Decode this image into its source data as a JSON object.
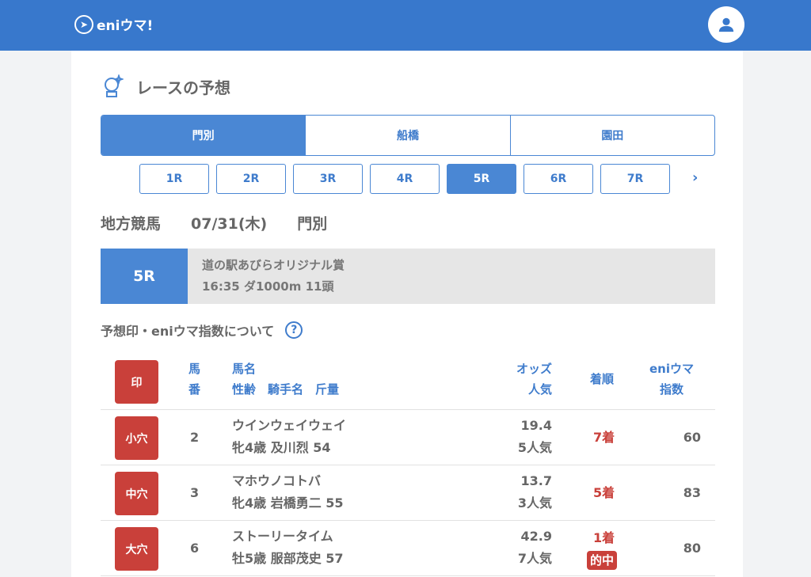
{
  "header": {
    "logo": "eniウマ!"
  },
  "page": {
    "title": "レースの予想"
  },
  "venues": [
    {
      "label": "門別",
      "active": true
    },
    {
      "label": "船橋",
      "active": false
    },
    {
      "label": "園田",
      "active": false
    }
  ],
  "races": [
    "1R",
    "2R",
    "3R",
    "4R",
    "5R",
    "6R",
    "7R"
  ],
  "active_race": "5R",
  "info": {
    "category": "地方競馬",
    "date": "07/31(木)",
    "venue": "門別"
  },
  "race": {
    "number": "5R",
    "name": "道の駅あびらオリジナル賞",
    "details": "16:35 ダ1000m 11頭"
  },
  "help": {
    "label": "予想印・eniウマ指数について"
  },
  "table": {
    "headers": {
      "mark": "印",
      "num1": "馬",
      "num2": "番",
      "name": "馬名",
      "sub": "性齢　騎手名　斤量",
      "odds": "オッズ",
      "pop": "人気",
      "finish": "着順",
      "index1": "eniウマ",
      "index2": "指数"
    },
    "rows": [
      {
        "mark": "小穴",
        "num": "2",
        "name": "ウインウェイウェイ",
        "sub": "牝4歳 及川烈 54",
        "odds": "19.4",
        "pop": "5人気",
        "finish": "7着",
        "hit": "",
        "index": "60"
      },
      {
        "mark": "中穴",
        "num": "3",
        "name": "マホウノコトバ",
        "sub": "牝4歳 岩橋勇二 55",
        "odds": "13.7",
        "pop": "3人気",
        "finish": "5着",
        "hit": "",
        "index": "83"
      },
      {
        "mark": "大穴",
        "num": "6",
        "name": "ストーリータイム",
        "sub": "牡5歳 服部茂史 57",
        "odds": "42.9",
        "pop": "7人気",
        "finish": "1着",
        "hit": "的中",
        "index": "80"
      }
    ]
  },
  "colors": {
    "brand": "#3878cc",
    "accent": "#4a87d4",
    "mark": "#c9403a"
  }
}
